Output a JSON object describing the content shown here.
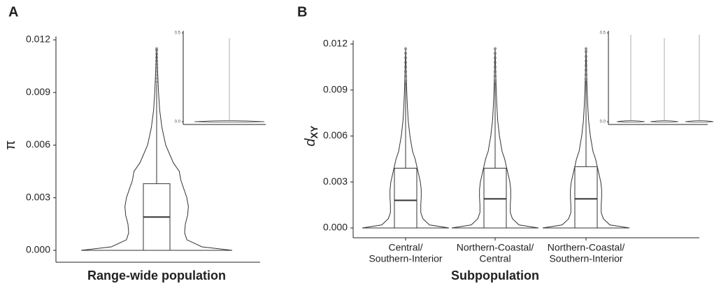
{
  "chart_data": [
    {
      "type": "violin",
      "panel_label": "A",
      "ylabel": "π",
      "xlabel": "Range-wide population",
      "categories": [
        null
      ],
      "ylim": [
        0,
        0.012
      ],
      "yticks": [
        {
          "value": 0,
          "label": "0.000"
        },
        {
          "value": 0.003,
          "label": "0.003"
        },
        {
          "value": 0.006,
          "label": "0.006"
        },
        {
          "value": 0.009,
          "label": "0.009"
        },
        {
          "value": 0.012,
          "label": "0.012"
        }
      ],
      "violin_y": [
        0,
        0.0002,
        0.0006,
        0.001,
        0.0015,
        0.002,
        0.0025,
        0.003,
        0.0035,
        0.004,
        0.0045,
        0.005,
        0.006,
        0.007,
        0.008,
        0.009,
        0.01,
        0.0115
      ],
      "series": [
        {
          "width": [
            1,
            0.6,
            0.4,
            0.37,
            0.38,
            0.41,
            0.42,
            0.4,
            0.36,
            0.32,
            0.3,
            0.22,
            0.12,
            0.07,
            0.04,
            0.025,
            0.015,
            0
          ],
          "q1": 0,
          "median": 0.0019,
          "q3": 0.0038,
          "whisker_high": 0.0095,
          "outliers": [
            0.0096,
            0.0098,
            0.01,
            0.0102,
            0.0104,
            0.0106,
            0.0108,
            0.011,
            0.0112,
            0.0114,
            0.0115
          ]
        }
      ],
      "inset": {
        "ylim": [
          0,
          0.5
        ],
        "yticks": [
          {
            "value": 0,
            "label": "0.0"
          },
          {
            "value": 0.5,
            "label": "0.5"
          }
        ],
        "max": [
          0.47
        ]
      }
    },
    {
      "type": "violin",
      "panel_label": "B",
      "ylabel": "d",
      "ylabel_subscript": "XY",
      "xlabel": "Subpopulation",
      "categories": [
        [
          "Central/",
          "Southern-Interior"
        ],
        [
          "Northern-Coastal/",
          "Central"
        ],
        [
          "Northern-Coastal/",
          "Southern-Interior"
        ]
      ],
      "ylim": [
        0,
        0.012
      ],
      "yticks": [
        {
          "value": 0,
          "label": "0.000"
        },
        {
          "value": 0.003,
          "label": "0.003"
        },
        {
          "value": 0.006,
          "label": "0.006"
        },
        {
          "value": 0.009,
          "label": "0.009"
        },
        {
          "value": 0.012,
          "label": "0.012"
        }
      ],
      "violin_y": [
        0,
        0.0002,
        0.0006,
        0.001,
        0.0015,
        0.002,
        0.0025,
        0.003,
        0.0035,
        0.004,
        0.0045,
        0.005,
        0.006,
        0.007,
        0.008,
        0.009,
        0.01,
        0.0117
      ],
      "series": [
        {
          "width": [
            1,
            0.55,
            0.4,
            0.35,
            0.35,
            0.36,
            0.36,
            0.34,
            0.3,
            0.26,
            0.22,
            0.16,
            0.1,
            0.06,
            0.04,
            0.025,
            0.015,
            0
          ],
          "q1": 0,
          "median": 0.0018,
          "q3": 0.0039,
          "whisker_high": 0.0095,
          "outliers": [
            0.0096,
            0.0099,
            0.0102,
            0.0105,
            0.0108,
            0.0111,
            0.0114,
            0.0117
          ]
        },
        {
          "width": [
            1,
            0.55,
            0.4,
            0.35,
            0.35,
            0.36,
            0.36,
            0.34,
            0.3,
            0.26,
            0.22,
            0.16,
            0.1,
            0.06,
            0.04,
            0.025,
            0.015,
            0
          ],
          "q1": 0,
          "median": 0.0019,
          "q3": 0.0039,
          "whisker_high": 0.0095,
          "outliers": [
            0.0096,
            0.0099,
            0.0102,
            0.0105,
            0.0108,
            0.0111,
            0.0114,
            0.0117
          ]
        },
        {
          "width": [
            1,
            0.55,
            0.4,
            0.35,
            0.35,
            0.36,
            0.36,
            0.34,
            0.3,
            0.26,
            0.22,
            0.16,
            0.1,
            0.06,
            0.04,
            0.025,
            0.015,
            0
          ],
          "q1": 0,
          "median": 0.0019,
          "q3": 0.004,
          "whisker_high": 0.0096,
          "outliers": [
            0.0097,
            0.01,
            0.0103,
            0.0106,
            0.0109,
            0.0112,
            0.0115,
            0.0117
          ]
        }
      ],
      "inset": {
        "ylim": [
          0,
          0.5
        ],
        "yticks": [
          {
            "value": 0,
            "label": "0.0"
          },
          {
            "value": 0.5,
            "label": "0.5"
          }
        ],
        "max": [
          0.49,
          0.47,
          0.49
        ]
      }
    }
  ]
}
